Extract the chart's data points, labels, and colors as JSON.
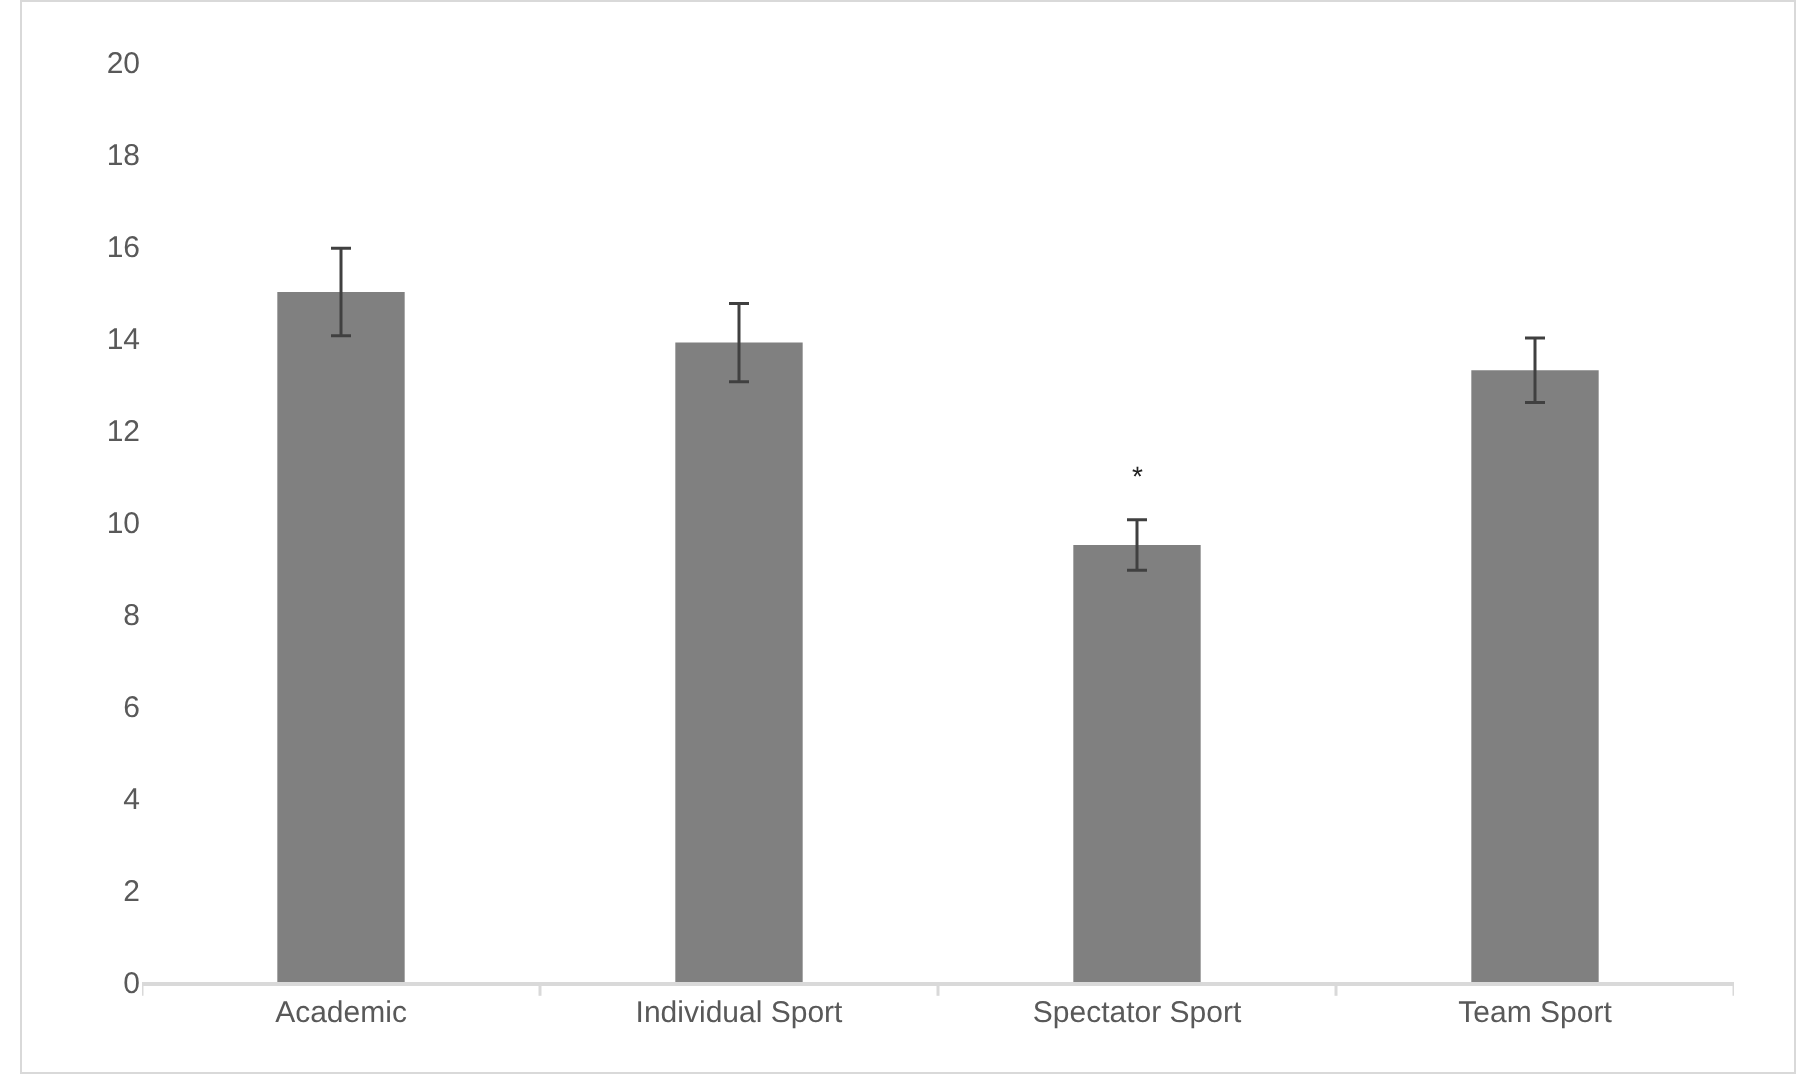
{
  "chart_data": {
    "type": "bar",
    "categories": [
      "Academic",
      "Individual Sport",
      "Spectator Sport",
      "Team Sport"
    ],
    "values": [
      15.0,
      13.9,
      9.5,
      13.3
    ],
    "errors": [
      0.95,
      0.85,
      0.55,
      0.7
    ],
    "color": "#808080",
    "ylim": [
      0,
      20
    ],
    "yticks": [
      0,
      2,
      4,
      6,
      8,
      10,
      12,
      14,
      16,
      18,
      20
    ],
    "grid": false,
    "annotations": [
      {
        "text": "*",
        "x": "Spectator Sport",
        "y": 10.05
      }
    ]
  }
}
